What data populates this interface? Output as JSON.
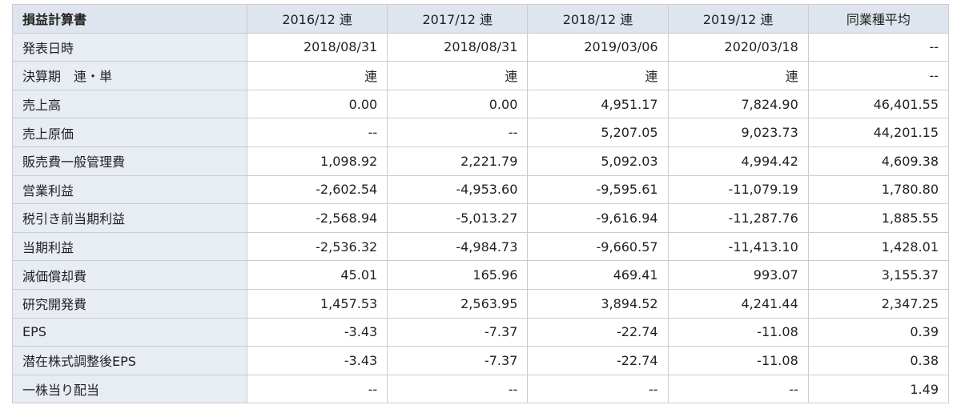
{
  "table": {
    "header": [
      "損益計算書",
      "2016/12 連",
      "2017/12 連",
      "2018/12 連",
      "2019/12 連",
      "同業種平均"
    ],
    "rows": [
      [
        "発表日時",
        "2018/08/31",
        "2018/08/31",
        "2019/03/06",
        "2020/03/18",
        "--"
      ],
      [
        "決算期　連・単",
        "連",
        "連",
        "連",
        "連",
        "--"
      ],
      [
        "売上高",
        "0.00",
        "0.00",
        "4,951.17",
        "7,824.90",
        "46,401.55"
      ],
      [
        "売上原価",
        "--",
        "--",
        "5,207.05",
        "9,023.73",
        "44,201.15"
      ],
      [
        "販売費一般管理費",
        "1,098.92",
        "2,221.79",
        "5,092.03",
        "4,994.42",
        "4,609.38"
      ],
      [
        "営業利益",
        "-2,602.54",
        "-4,953.60",
        "-9,595.61",
        "-11,079.19",
        "1,780.80"
      ],
      [
        "税引き前当期利益",
        "-2,568.94",
        "-5,013.27",
        "-9,616.94",
        "-11,287.76",
        "1,885.55"
      ],
      [
        "当期利益",
        "-2,536.32",
        "-4,984.73",
        "-9,660.57",
        "-11,413.10",
        "1,428.01"
      ],
      [
        "減価償却費",
        "45.01",
        "165.96",
        "469.41",
        "993.07",
        "3,155.37"
      ],
      [
        "研究開発費",
        "1,457.53",
        "2,563.95",
        "3,894.52",
        "4,241.44",
        "2,347.25"
      ],
      [
        "EPS",
        "-3.43",
        "-7.37",
        "-22.74",
        "-11.08",
        "0.39"
      ],
      [
        "潜在株式調整後EPS",
        "-3.43",
        "-7.37",
        "-22.74",
        "-11.08",
        "0.38"
      ],
      [
        "一株当り配当",
        "--",
        "--",
        "--",
        "--",
        "1.49"
      ]
    ]
  }
}
